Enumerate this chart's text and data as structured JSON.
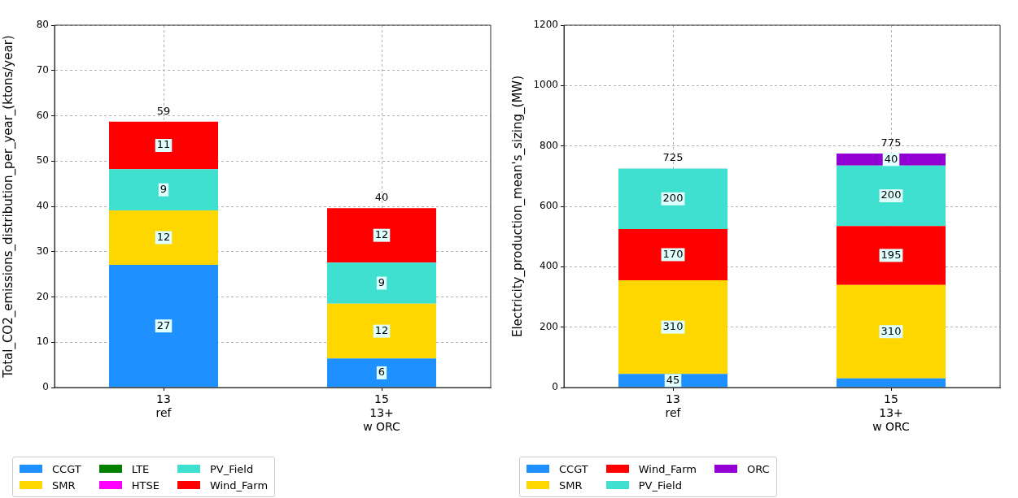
{
  "chart_data": [
    {
      "type": "bar",
      "stacked": true,
      "ylabel": "Total_CO2_emissions_distribution_per_year_(ktons/year)",
      "categories": [
        "13\nref",
        "15\n13+\nw ORC"
      ],
      "ylim": [
        0,
        80
      ],
      "yticks": [
        0,
        10,
        20,
        30,
        40,
        50,
        60,
        70,
        80
      ],
      "grid": true,
      "legend": "bottom",
      "series": [
        {
          "name": "CCGT",
          "color": "#1e90ff",
          "values": [
            27.1,
            6.4
          ],
          "value_labels": [
            "27",
            "6"
          ]
        },
        {
          "name": "SMR",
          "color": "#ffd700",
          "values": [
            12,
            12.1
          ],
          "value_labels": [
            "12",
            "12"
          ]
        },
        {
          "name": "LTE",
          "color": "#008000",
          "values": [
            0,
            0
          ]
        },
        {
          "name": "HTSE",
          "color": "#ff00ff",
          "values": [
            0,
            0
          ]
        },
        {
          "name": "PV_Field",
          "color": "#40e0d0",
          "values": [
            9.1,
            9.1
          ],
          "value_labels": [
            "9",
            "9"
          ]
        },
        {
          "name": "Wind_Farm",
          "color": "#ff0000",
          "values": [
            10.5,
            12
          ],
          "value_labels": [
            "11",
            "12"
          ]
        }
      ],
      "totals": [
        "59",
        "40"
      ]
    },
    {
      "type": "bar",
      "stacked": true,
      "ylabel": "Electricity_production_mean's_sizing_(MW)",
      "categories": [
        "13\nref",
        "15\n13+\nw ORC"
      ],
      "ylim": [
        0,
        1200
      ],
      "yticks": [
        0,
        200,
        400,
        600,
        800,
        1000,
        1200
      ],
      "grid": true,
      "legend": "bottom",
      "series": [
        {
          "name": "CCGT",
          "color": "#1e90ff",
          "values": [
            45,
            30
          ],
          "value_labels": [
            "45",
            null
          ]
        },
        {
          "name": "SMR",
          "color": "#ffd700",
          "values": [
            310,
            310
          ],
          "value_labels": [
            "310",
            "310"
          ]
        },
        {
          "name": "Wind_Farm",
          "color": "#ff0000",
          "values": [
            170,
            195
          ],
          "value_labels": [
            "170",
            "195"
          ]
        },
        {
          "name": "PV_Field",
          "color": "#40e0d0",
          "values": [
            200,
            200
          ],
          "value_labels": [
            "200",
            "200"
          ]
        },
        {
          "name": "ORC",
          "color": "#9400d3",
          "values": [
            null,
            40
          ],
          "value_labels": [
            null,
            "40"
          ]
        }
      ],
      "totals": [
        "725",
        "775"
      ]
    }
  ]
}
